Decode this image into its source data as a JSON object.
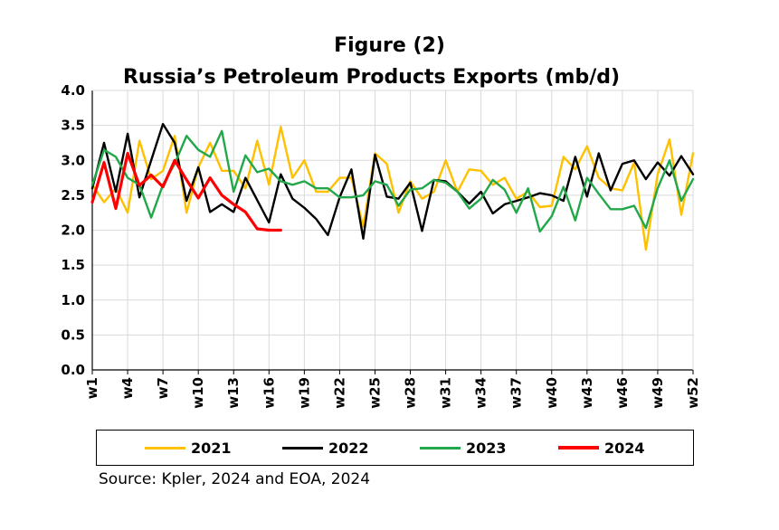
{
  "title_line1": "Figure (2)",
  "title_line2": "Russia’s Petroleum Products Exports (mb/d)",
  "source": "Source: Kpler, 2024 and EOA, 2024",
  "chart_data": {
    "type": "line",
    "ylim": [
      0.0,
      4.0
    ],
    "yticks": [
      "0.0",
      "0.5",
      "1.0",
      "1.5",
      "2.0",
      "2.5",
      "3.0",
      "3.5",
      "4.0"
    ],
    "xlim": [
      1,
      52
    ],
    "xticks": [
      "w1",
      "w4",
      "w7",
      "w10",
      "w13",
      "w16",
      "w19",
      "w22",
      "w25",
      "w28",
      "w31",
      "w34",
      "w37",
      "w40",
      "w43",
      "w46",
      "w49",
      "w52"
    ],
    "grid": true,
    "legend_position": "bottom",
    "series": [
      {
        "name": "2021",
        "color": "#FFC000",
        "values": [
          2.65,
          2.4,
          2.6,
          2.25,
          3.28,
          2.73,
          2.85,
          3.35,
          2.25,
          2.9,
          3.25,
          2.85,
          2.85,
          2.6,
          3.28,
          2.65,
          3.48,
          2.75,
          3.0,
          2.55,
          2.55,
          2.75,
          2.75,
          2.05,
          3.1,
          2.95,
          2.25,
          2.7,
          2.45,
          2.55,
          3.0,
          2.55,
          2.87,
          2.85,
          2.65,
          2.75,
          2.45,
          2.55,
          2.33,
          2.35,
          3.05,
          2.87,
          3.2,
          2.75,
          2.6,
          2.57,
          2.97,
          1.72,
          2.8,
          3.3,
          2.22,
          3.1
        ]
      },
      {
        "name": "2022",
        "color": "#000000",
        "values": [
          2.6,
          3.25,
          2.55,
          3.38,
          2.47,
          3.0,
          3.52,
          3.25,
          2.42,
          2.9,
          2.26,
          2.37,
          2.26,
          2.75,
          2.43,
          2.11,
          2.8,
          2.45,
          2.32,
          2.16,
          1.93,
          2.47,
          2.87,
          1.88,
          3.08,
          2.48,
          2.45,
          2.68,
          1.99,
          2.72,
          2.7,
          2.55,
          2.38,
          2.55,
          2.24,
          2.37,
          2.42,
          2.47,
          2.53,
          2.5,
          2.42,
          3.05,
          2.48,
          3.1,
          2.57,
          2.95,
          3.0,
          2.73,
          2.97,
          2.78,
          3.06,
          2.8
        ]
      },
      {
        "name": "2023",
        "color": "#22A84A",
        "values": [
          2.65,
          3.15,
          3.05,
          2.75,
          2.65,
          2.18,
          2.65,
          2.95,
          3.35,
          3.15,
          3.05,
          3.42,
          2.55,
          3.07,
          2.83,
          2.88,
          2.7,
          2.65,
          2.7,
          2.6,
          2.6,
          2.47,
          2.47,
          2.5,
          2.7,
          2.65,
          2.35,
          2.58,
          2.6,
          2.72,
          2.68,
          2.55,
          2.31,
          2.45,
          2.72,
          2.58,
          2.25,
          2.6,
          1.98,
          2.2,
          2.62,
          2.14,
          2.75,
          2.52,
          2.3,
          2.3,
          2.35,
          2.03,
          2.6,
          3.0,
          2.42,
          2.73
        ]
      },
      {
        "name": "2024",
        "color": "#FF0000",
        "values": [
          2.4,
          2.97,
          2.31,
          3.1,
          2.64,
          2.79,
          2.62,
          3.0,
          2.72,
          2.46,
          2.75,
          2.5,
          2.37,
          2.26,
          2.02,
          2.0,
          2.0
        ]
      }
    ]
  }
}
